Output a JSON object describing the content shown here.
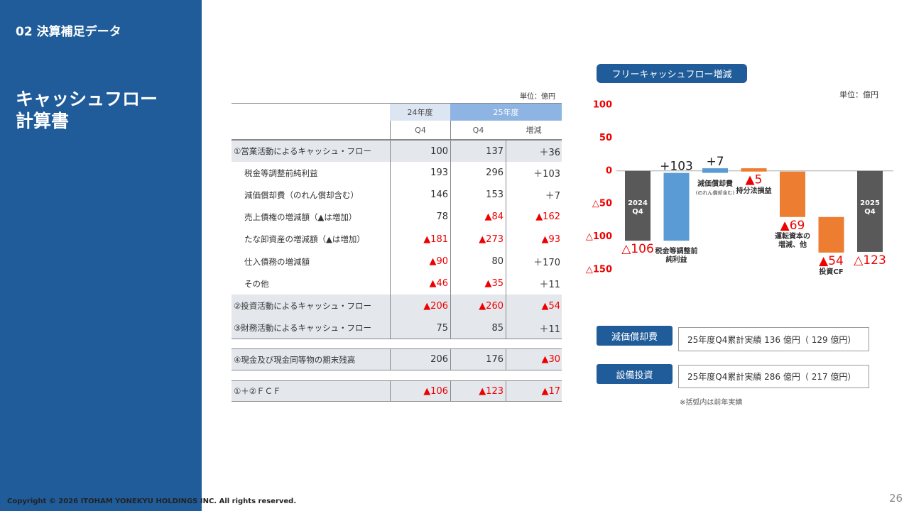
{
  "sidebar": {
    "section": "02 決算補足データ",
    "title": "キャッシュフロー\n計算書"
  },
  "table": {
    "unit": "単位：億円",
    "header_years": [
      "24年度",
      "25年度"
    ],
    "header_cols": [
      "Q4",
      "Q4",
      "増減"
    ],
    "rows": [
      [
        "①営業活動によるキャッシュ・フロー",
        "100",
        "137",
        "＋36"
      ],
      [
        "税金等調整前純利益",
        "193",
        "296",
        "＋103"
      ],
      [
        "減価償却費（のれん償却含む）",
        "146",
        "153",
        "＋7"
      ],
      [
        "売上債権の増減額（▲は増加）",
        "78",
        "▲84",
        "▲162"
      ],
      [
        "たな卸資産の増減額（▲は増加）",
        "▲181",
        "▲273",
        "▲93"
      ],
      [
        "仕入債務の増減額",
        "▲90",
        "80",
        "＋170"
      ],
      [
        "その他",
        "▲46",
        "▲35",
        "＋11"
      ],
      [
        "②投資活動によるキャッシュ・フロー",
        "▲206",
        "▲260",
        "▲54"
      ],
      [
        "③財務活動によるキャッシュ・フロー",
        "75",
        "85",
        "＋11"
      ],
      [
        "④現金及び現金同等物の期末残高",
        "206",
        "176",
        "▲30"
      ],
      [
        "①＋②ＦＣＦ",
        "▲106",
        "▲123",
        "▲17"
      ]
    ]
  },
  "chart_data": {
    "type": "waterfall",
    "title": "フリーキャッシュフロー増減",
    "unit": "単位：億円",
    "categories": [
      "2024\nQ4",
      "税金等調整前\n純利益",
      "減価償却費",
      "持分法損益",
      "運転資本の\n増減、他",
      "投資CF",
      "2025\nQ4"
    ],
    "category_note": "(のれん償却含む)",
    "measure": [
      "absolute",
      "relative",
      "relative",
      "relative",
      "relative",
      "relative",
      "absolute"
    ],
    "values": [
      -106,
      103,
      7,
      -5,
      -69,
      -54,
      -123
    ],
    "value_labels": [
      "△106",
      "+103",
      "+7",
      "▲5",
      "▲69",
      "▲54",
      "△123"
    ],
    "colors": [
      "#595959",
      "#5b9bd5",
      "#5b9bd5",
      "#ed7d31",
      "#ed7d31",
      "#ed7d31",
      "#595959"
    ],
    "ylim": [
      -150,
      100
    ],
    "yticks": [
      100,
      50,
      0,
      {
        "value": -50,
        "label": "△50"
      },
      {
        "value": -100,
        "label": "△100"
      },
      {
        "value": -150,
        "label": "△150"
      }
    ]
  },
  "notes": [
    {
      "tag": "減価償却費",
      "text": "25年度Q4累計実績  136 億円（ 129 億円）"
    },
    {
      "tag": "設備投資",
      "text": "25年度Q4累計実績  286 億円（ 217 億円）"
    }
  ],
  "footnote": "※括弧内は前年実績",
  "footer": {
    "copyright": "Copyright © 2026 ITOHAM YONEKYU HOLDINGS INC. All rights reserved.",
    "page": "26"
  }
}
